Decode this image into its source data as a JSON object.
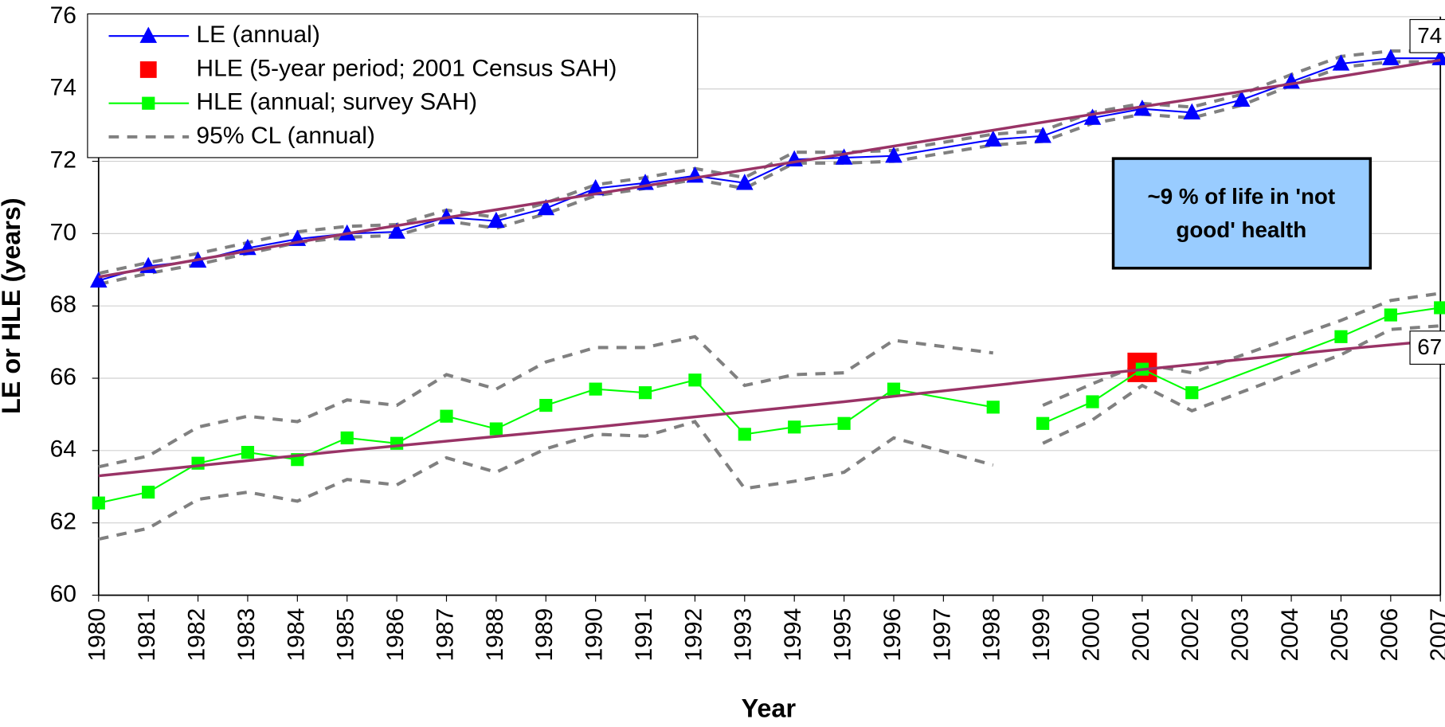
{
  "chart_data": {
    "type": "line",
    "x_label": "Year",
    "y_label": "LE or HLE (years)",
    "xlim": [
      1980,
      2007
    ],
    "xticks": [
      1980,
      1981,
      1982,
      1983,
      1984,
      1985,
      1986,
      1987,
      1988,
      1989,
      1990,
      1991,
      1992,
      1993,
      1994,
      1995,
      1996,
      1997,
      1998,
      1999,
      2000,
      2001,
      2002,
      2003,
      2004,
      2005,
      2006,
      2007
    ],
    "ylim": [
      60,
      76
    ],
    "yticks": [
      60,
      62,
      64,
      66,
      68,
      70,
      72,
      74,
      76
    ],
    "grid": true,
    "legend": "top-left",
    "series": [
      {
        "name": "95% CL (annual)",
        "color": "#808080",
        "dash": true,
        "marker": "none",
        "x": [
          1980,
          1981,
          1982,
          1983,
          1984,
          1985,
          1986,
          1987,
          1988,
          1989,
          1990,
          1991,
          1992,
          1993,
          1994,
          1995,
          1996,
          1998,
          1999,
          2000,
          2001,
          2002,
          2003,
          2004,
          2005,
          2006,
          2007
        ],
        "values": [
          68.9,
          69.2,
          69.45,
          69.75,
          70.05,
          70.2,
          70.25,
          70.65,
          70.45,
          70.85,
          71.35,
          71.55,
          71.8,
          71.55,
          72.25,
          72.25,
          72.3,
          72.75,
          72.85,
          73.35,
          73.6,
          73.5,
          73.85,
          74.4,
          74.9,
          75.05,
          75.05
        ]
      },
      {
        "color": "#808080",
        "dash": true,
        "marker": "none",
        "x": [
          1980,
          1981,
          1982,
          1983,
          1984,
          1985,
          1986,
          1987,
          1988,
          1989,
          1990,
          1991,
          1992,
          1993,
          1994,
          1995,
          1996,
          1998,
          1999,
          2000,
          2001,
          2002,
          2003,
          2004,
          2005,
          2006,
          2007
        ],
        "values": [
          68.6,
          68.9,
          69.15,
          69.45,
          69.75,
          69.9,
          69.95,
          70.35,
          70.15,
          70.55,
          71.05,
          71.25,
          71.5,
          71.25,
          71.95,
          71.95,
          72.0,
          72.45,
          72.55,
          73.05,
          73.3,
          73.2,
          73.55,
          74.1,
          74.6,
          74.75,
          74.75
        ]
      },
      {
        "color": "#808080",
        "dash": true,
        "marker": "none",
        "x": [
          1980,
          1981,
          1982,
          1983,
          1984,
          1985,
          1986,
          1987,
          1988,
          1989,
          1990,
          1991,
          1992,
          1993,
          1994,
          1995,
          1996,
          1998
        ],
        "values": [
          63.55,
          63.85,
          64.65,
          64.95,
          64.8,
          65.4,
          65.25,
          66.1,
          65.7,
          66.45,
          66.85,
          66.85,
          67.15,
          65.8,
          66.1,
          66.15,
          67.05,
          66.7
        ]
      },
      {
        "color": "#808080",
        "dash": true,
        "marker": "none",
        "x": [
          1980,
          1981,
          1982,
          1983,
          1984,
          1985,
          1986,
          1987,
          1988,
          1989,
          1990,
          1991,
          1992,
          1993,
          1994,
          1995,
          1996,
          1998
        ],
        "values": [
          61.55,
          61.85,
          62.65,
          62.85,
          62.6,
          63.2,
          63.05,
          63.8,
          63.4,
          64.05,
          64.45,
          64.4,
          64.8,
          62.95,
          63.15,
          63.4,
          64.35,
          63.6
        ]
      },
      {
        "color": "#808080",
        "dash": true,
        "marker": "none",
        "x": [
          1999,
          2000,
          2001,
          2002,
          2005,
          2006,
          2007
        ],
        "values": [
          65.25,
          65.85,
          66.4,
          66.15,
          67.6,
          68.15,
          68.35
        ]
      },
      {
        "color": "#808080",
        "dash": true,
        "marker": "none",
        "x": [
          1999,
          2000,
          2001,
          2002,
          2005,
          2006,
          2007
        ],
        "values": [
          64.2,
          64.85,
          65.8,
          65.1,
          66.65,
          67.35,
          67.45
        ]
      },
      {
        "name": "LE (annual)",
        "color": "#0000ff",
        "marker": "triangle",
        "marker_color": "#0000ff",
        "x": [
          1980,
          1981,
          1982,
          1983,
          1984,
          1985,
          1986,
          1987,
          1988,
          1989,
          1990,
          1991,
          1992,
          1993,
          1994,
          1995,
          1996,
          1998,
          1999,
          2000,
          2001,
          2002,
          2003,
          2004,
          2005,
          2006,
          2007
        ],
        "values": [
          68.7,
          69.1,
          69.25,
          69.6,
          69.85,
          70.0,
          70.05,
          70.45,
          70.35,
          70.7,
          71.25,
          71.4,
          71.6,
          71.4,
          72.05,
          72.1,
          72.15,
          72.6,
          72.7,
          73.2,
          73.45,
          73.35,
          73.7,
          74.2,
          74.7,
          74.85,
          74.85
        ]
      },
      {
        "name": "HLE (5-year period; 2001 Census SAH)",
        "color": "#ff0000",
        "marker": "bigsquare",
        "line": false,
        "x": [
          2001
        ],
        "values": [
          66.3
        ]
      },
      {
        "name": "HLE (annual; survey SAH)",
        "color": "#00ff00",
        "marker": "square",
        "x": [
          1980,
          1981,
          1982,
          1983,
          1984,
          1985,
          1986,
          1987,
          1988,
          1989,
          1990,
          1991,
          1992,
          1993,
          1994,
          1995,
          1996,
          1998
        ],
        "values": [
          62.55,
          62.85,
          63.65,
          63.95,
          63.75,
          64.35,
          64.2,
          64.95,
          64.6,
          65.25,
          65.7,
          65.6,
          65.95,
          64.45,
          64.65,
          64.75,
          65.7,
          65.2
        ]
      },
      {
        "color": "#00ff00",
        "marker": "square",
        "x": [
          1999,
          2000,
          2001,
          2002,
          2005,
          2006,
          2007
        ],
        "values": [
          64.75,
          65.35,
          66.25,
          65.6,
          67.15,
          67.75,
          67.95
        ]
      },
      {
        "color": "#993366",
        "marker": "none",
        "width": 3,
        "x": [
          1980,
          1985,
          1990,
          1995,
          2000,
          2005,
          2007
        ],
        "values": [
          68.8,
          70.0,
          71.1,
          72.2,
          73.3,
          74.35,
          74.8
        ]
      },
      {
        "color": "#993366",
        "marker": "none",
        "width": 3,
        "x": [
          1980,
          1985,
          1990,
          1995,
          2000,
          2005,
          2007
        ],
        "values": [
          63.3,
          64.0,
          64.65,
          65.35,
          66.1,
          66.8,
          67.05
        ]
      }
    ],
    "annotations": [
      {
        "text": "74"
      },
      {
        "text": "67"
      },
      {
        "lines": [
          "~9 % of life in 'not",
          "good' health"
        ],
        "fill": "#99ccff"
      }
    ]
  }
}
